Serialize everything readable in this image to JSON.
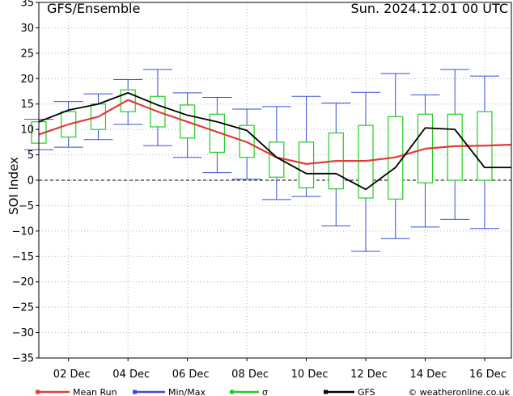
{
  "header": {
    "title": "GFS/Ensemble",
    "date": "Sun. 2024.12.01   00 UTC"
  },
  "legend": [
    {
      "label": "Mean Run",
      "color": "#e03c3c"
    },
    {
      "label": "Min/Max",
      "color": "#3a4bd8"
    },
    {
      "label": "σ",
      "color": "#22cc22"
    },
    {
      "label": "GFS",
      "color": "#000000"
    }
  ],
  "credit": "© weatheronline.co.uk",
  "chart_data": {
    "type": "line",
    "ylabel": "SOI Index",
    "ylim": [
      -35,
      35
    ],
    "yticks": [
      35,
      30,
      25,
      20,
      15,
      10,
      5,
      0,
      -5,
      -10,
      -15,
      -20,
      -25,
      -30,
      -35
    ],
    "xlim": [
      0,
      15.9
    ],
    "xticks": [
      {
        "x": 1,
        "label": "02 Dec"
      },
      {
        "x": 3,
        "label": "04 Dec"
      },
      {
        "x": 5,
        "label": "06 Dec"
      },
      {
        "x": 7,
        "label": "08 Dec"
      },
      {
        "x": 9,
        "label": "10 Dec"
      },
      {
        "x": 11,
        "label": "12 Dec"
      },
      {
        "x": 13,
        "label": "14 Dec"
      },
      {
        "x": 15,
        "label": "16 Dec"
      }
    ],
    "grid": true,
    "series": [
      {
        "name": "Mean Run",
        "x": [
          0,
          1,
          2,
          3,
          4,
          5,
          6,
          7,
          8,
          9,
          10,
          11,
          12,
          13,
          14,
          15,
          15.9
        ],
        "values": [
          9,
          11,
          12.5,
          15.8,
          13.5,
          11.5,
          9.5,
          7.5,
          4.5,
          3.2,
          3.8,
          3.8,
          4.5,
          6.2,
          6.7,
          6.8,
          7
        ]
      },
      {
        "name": "GFS",
        "x": [
          0,
          1,
          2,
          3,
          4,
          5,
          6,
          7,
          8,
          9,
          10,
          11,
          12,
          13,
          14,
          15,
          15.9
        ],
        "values": [
          11.5,
          13.8,
          15,
          17.2,
          14.8,
          12.8,
          11.5,
          9.8,
          4.5,
          1.3,
          1.3,
          -1.8,
          2.5,
          10.3,
          10,
          2.5,
          2.5
        ]
      }
    ],
    "boxes": [
      {
        "x": 0,
        "min": 6,
        "max": 12,
        "low": 7.3,
        "high": 11.5
      },
      {
        "x": 1,
        "min": 6.5,
        "max": 15.5,
        "low": 8.5,
        "high": 13.5
      },
      {
        "x": 2,
        "min": 8,
        "max": 17,
        "low": 10,
        "high": 15
      },
      {
        "x": 3,
        "min": 11,
        "max": 19.8,
        "low": 13.5,
        "high": 17.8
      },
      {
        "x": 4,
        "min": 6.8,
        "max": 21.8,
        "low": 10.5,
        "high": 16.5
      },
      {
        "x": 5,
        "min": 4.5,
        "max": 17.2,
        "low": 8.3,
        "high": 14.8
      },
      {
        "x": 6,
        "min": 1.5,
        "max": 16.3,
        "low": 5.5,
        "high": 13
      },
      {
        "x": 7,
        "min": 0.2,
        "max": 14,
        "low": 4.5,
        "high": 10.8
      },
      {
        "x": 8,
        "min": -3.8,
        "max": 14.5,
        "low": 0.6,
        "high": 7.5
      },
      {
        "x": 9,
        "min": -3.2,
        "max": 16.5,
        "low": -1.5,
        "high": 7.5
      },
      {
        "x": 10,
        "min": -9,
        "max": 15.2,
        "low": -1.7,
        "high": 9.3
      },
      {
        "x": 11,
        "min": -14,
        "max": 17.3,
        "low": -3.5,
        "high": 10.8
      },
      {
        "x": 12,
        "min": -11.5,
        "max": 21,
        "low": -3.7,
        "high": 12.5
      },
      {
        "x": 13,
        "min": -9.2,
        "max": 16.8,
        "low": -0.5,
        "high": 13
      },
      {
        "x": 14,
        "min": -7.7,
        "max": 21.8,
        "low": 0,
        "high": 13
      },
      {
        "x": 15,
        "min": -9.5,
        "max": 20.5,
        "low": 0,
        "high": 13.5
      }
    ]
  }
}
